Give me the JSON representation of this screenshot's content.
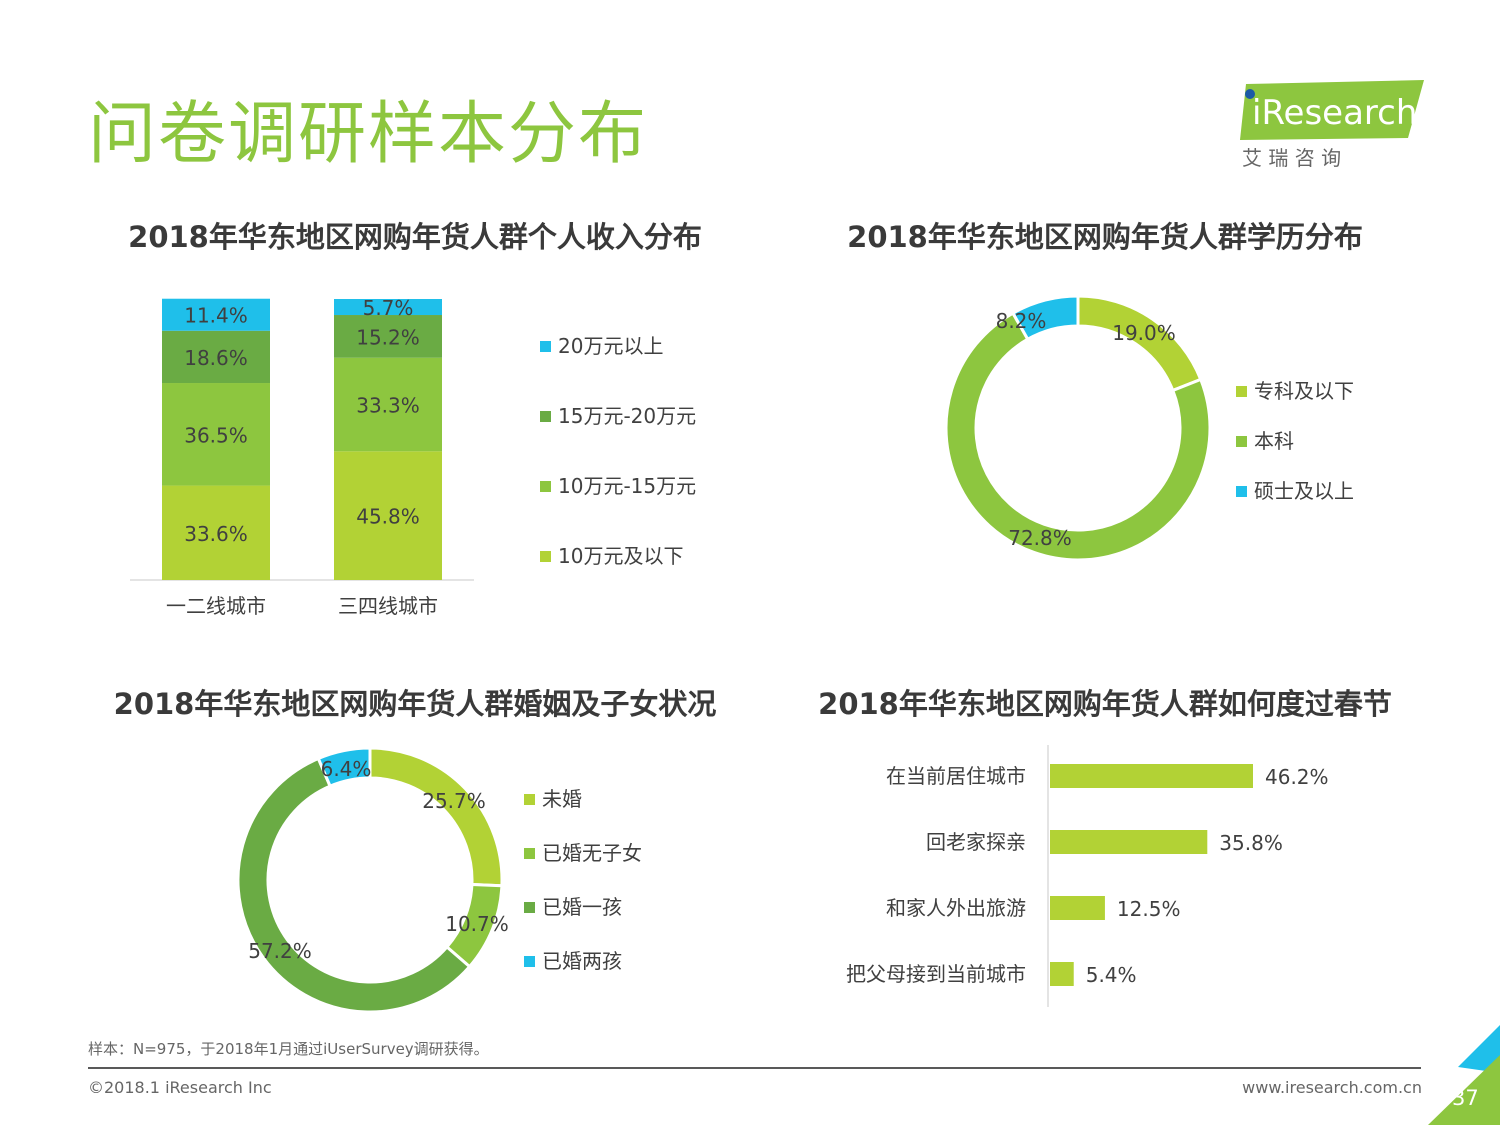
{
  "page": {
    "title": "问卷调研样本分布",
    "logo_text": "iResearch",
    "logo_sub": "艾  瑞  咨  询",
    "footnote": "样本：N=975，于2018年1月通过iUserSurvey调研获得。",
    "copyright": "©2018.1 iResearch Inc",
    "website": "www.iresearch.com.cn",
    "page_number": "37"
  },
  "colors": {
    "green_light": "#b2d235",
    "green_mid": "#8dc63f",
    "green_dark": "#6aab44",
    "cyan": "#1fbfea",
    "title_green": "#8dc63f"
  },
  "chart_data": [
    {
      "type": "bar",
      "stacked": true,
      "title": "2018年华东地区网购年货人群个人收入分布",
      "categories": [
        "一二线城市",
        "三四线城市"
      ],
      "ylim": [
        0,
        100
      ],
      "series": [
        {
          "name": "10万元及以下",
          "values": [
            33.6,
            45.8
          ],
          "labels": [
            "33.6%",
            "45.8%"
          ],
          "color": "#b2d235"
        },
        {
          "name": "10万元-15万元",
          "values": [
            36.5,
            33.3
          ],
          "labels": [
            "36.5%",
            "33.3%"
          ],
          "color": "#8dc63f"
        },
        {
          "name": "15万元-20万元",
          "values": [
            18.6,
            15.2
          ],
          "labels": [
            "18.6%",
            "15.2%"
          ],
          "color": "#6aab44"
        },
        {
          "name": "20万元以上",
          "values": [
            11.4,
            5.7
          ],
          "labels": [
            "11.4%",
            "5.7%"
          ],
          "color": "#1fbfea"
        }
      ],
      "legend_order": [
        "20万元以上",
        "15万元-20万元",
        "10万元-15万元",
        "10万元及以下"
      ]
    },
    {
      "type": "pie",
      "donut": true,
      "title": "2018年华东地区网购年货人群学历分布",
      "slices": [
        {
          "name": "专科及以下",
          "value": 19.0,
          "label": "19.0%",
          "color": "#b2d235"
        },
        {
          "name": "本科",
          "value": 72.8,
          "label": "72.8%",
          "color": "#8dc63f"
        },
        {
          "name": "硕士及以上",
          "value": 8.2,
          "label": "8.2%",
          "color": "#1fbfea"
        }
      ]
    },
    {
      "type": "pie",
      "donut": true,
      "title": "2018年华东地区网购年货人群婚姻及子女状况",
      "slices": [
        {
          "name": "未婚",
          "value": 25.7,
          "label": "25.7%",
          "color": "#b2d235"
        },
        {
          "name": "已婚无子女",
          "value": 10.7,
          "label": "10.7%",
          "color": "#8dc63f"
        },
        {
          "name": "已婚一孩",
          "value": 57.2,
          "label": "57.2%",
          "color": "#6aab44"
        },
        {
          "name": "已婚两孩",
          "value": 6.4,
          "label": "6.4%",
          "color": "#1fbfea"
        }
      ]
    },
    {
      "type": "bar",
      "orientation": "horizontal",
      "title": "2018年华东地区网购年货人群如何度过春节",
      "categories": [
        "在当前居住城市",
        "回老家探亲",
        "和家人外出旅游",
        "把父母接到当前城市"
      ],
      "values": [
        46.2,
        35.8,
        12.5,
        5.4
      ],
      "labels": [
        "46.2%",
        "35.8%",
        "12.5%",
        "5.4%"
      ],
      "color": "#b2d235"
    }
  ]
}
